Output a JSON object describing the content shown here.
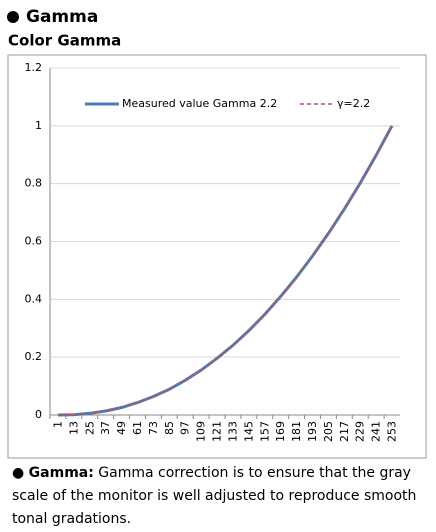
{
  "heading": "Gamma",
  "subheading": "Color Gamma",
  "chart_data": {
    "type": "line",
    "categories": [
      "1",
      "13",
      "25",
      "37",
      "49",
      "61",
      "73",
      "85",
      "97",
      "109",
      "121",
      "133",
      "145",
      "157",
      "169",
      "181",
      "193",
      "205",
      "217",
      "229",
      "241",
      "253"
    ],
    "series": [
      {
        "name": "Measured value Gamma 2.2",
        "color": "#4a7ebb",
        "dashed": false,
        "values": [
          0,
          0.001,
          0.006,
          0.014,
          0.026,
          0.043,
          0.064,
          0.089,
          0.12,
          0.155,
          0.196,
          0.241,
          0.292,
          0.348,
          0.41,
          0.477,
          0.55,
          0.628,
          0.712,
          0.802,
          0.898,
          1
        ]
      },
      {
        "name": "γ=2.2",
        "color": "#c0504d",
        "dashed": true,
        "values": [
          0,
          0.001,
          0.006,
          0.014,
          0.026,
          0.043,
          0.064,
          0.089,
          0.12,
          0.155,
          0.196,
          0.241,
          0.292,
          0.348,
          0.41,
          0.477,
          0.55,
          0.628,
          0.712,
          0.802,
          0.898,
          1
        ]
      }
    ],
    "ylim": [
      0,
      1.2
    ],
    "yticks": [
      0,
      0.2,
      0.4,
      0.6,
      0.8,
      1,
      1.2
    ],
    "grid": true,
    "legend": "top"
  },
  "note": {
    "term": "Gamma:",
    "text": "Gamma correction is to ensure that the gray scale of the monitor is well adjusted to reproduce smooth tonal gradations."
  }
}
